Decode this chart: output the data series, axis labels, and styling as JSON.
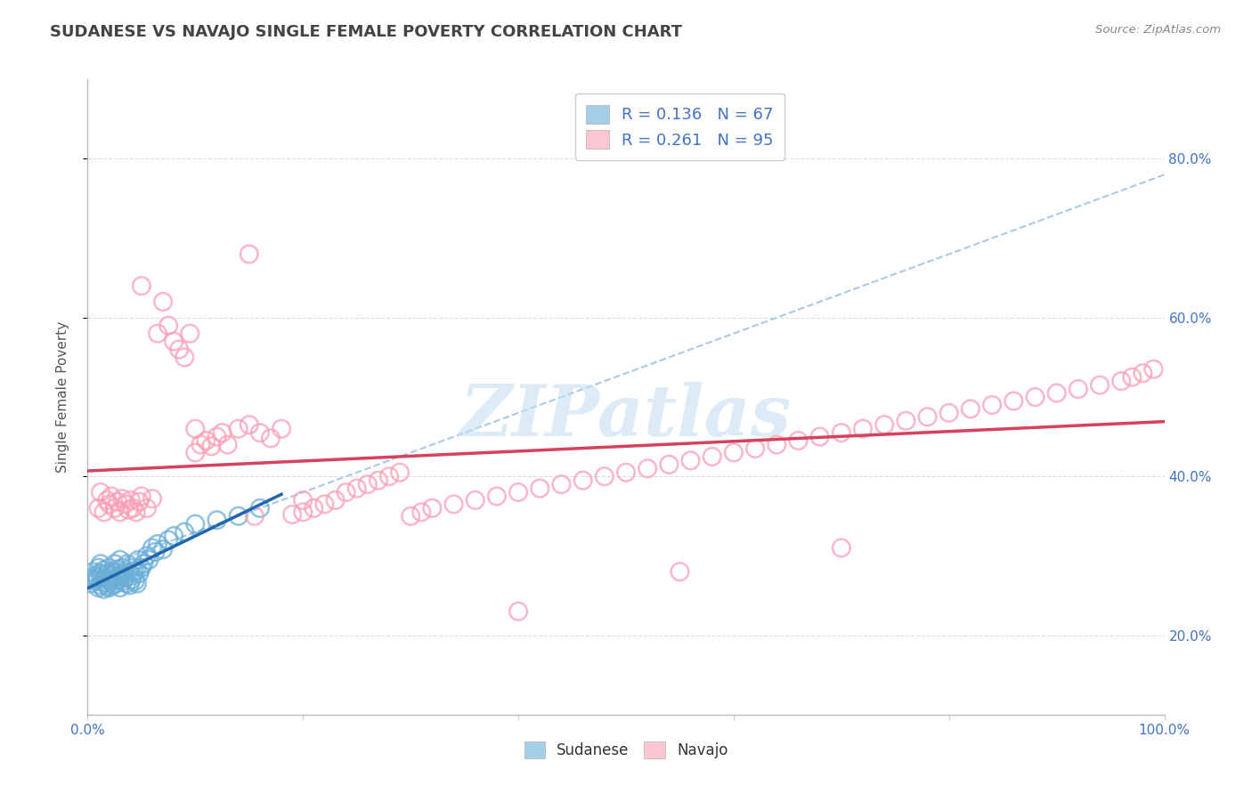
{
  "title": "SUDANESE VS NAVAJO SINGLE FEMALE POVERTY CORRELATION CHART",
  "source_text": "Source: ZipAtlas.com",
  "ylabel": "Single Female Poverty",
  "xlim": [
    0.0,
    1.0
  ],
  "ylim": [
    0.1,
    0.9
  ],
  "y_tick_vals": [
    0.2,
    0.4,
    0.6,
    0.8
  ],
  "y_tick_labels": [
    "20.0%",
    "40.0%",
    "60.0%",
    "80.0%"
  ],
  "x_tick_vals": [
    0.0,
    0.2,
    0.4,
    0.6,
    0.8,
    1.0
  ],
  "x_edge_labels": [
    "0.0%",
    "100.0%"
  ],
  "sudanese_color": "#6baed6",
  "sudanese_edge_color": "#4393c3",
  "navajo_color": "#fa9fb5",
  "navajo_edge_color": "#f768a1",
  "sudanese_R": 0.136,
  "sudanese_N": 67,
  "navajo_R": 0.261,
  "navajo_N": 95,
  "legend_label_1": "Sudanese",
  "legend_label_2": "Navajo",
  "watermark": "ZIPatlas",
  "blue_line_color": "#2166ac",
  "pink_line_color": "#d6415e",
  "dashed_line_color": "#aac8e8",
  "grid_color": "#dddddd",
  "axis_label_color": "#4472c4",
  "title_color": "#444444",
  "source_color": "#888888",
  "sud_seed": 42,
  "nav_seed": 7,
  "sud_x": [
    0.003,
    0.005,
    0.006,
    0.007,
    0.008,
    0.009,
    0.01,
    0.01,
    0.011,
    0.012,
    0.012,
    0.013,
    0.014,
    0.015,
    0.015,
    0.016,
    0.017,
    0.018,
    0.018,
    0.019,
    0.02,
    0.02,
    0.021,
    0.022,
    0.023,
    0.024,
    0.025,
    0.025,
    0.026,
    0.027,
    0.028,
    0.029,
    0.03,
    0.03,
    0.031,
    0.032,
    0.033,
    0.034,
    0.035,
    0.036,
    0.037,
    0.038,
    0.039,
    0.04,
    0.041,
    0.042,
    0.043,
    0.044,
    0.045,
    0.046,
    0.047,
    0.048,
    0.05,
    0.052,
    0.055,
    0.057,
    0.06,
    0.063,
    0.065,
    0.07,
    0.075,
    0.08,
    0.09,
    0.1,
    0.12,
    0.14,
    0.16
  ],
  "sud_y": [
    0.265,
    0.28,
    0.27,
    0.275,
    0.268,
    0.272,
    0.26,
    0.285,
    0.278,
    0.263,
    0.29,
    0.275,
    0.268,
    0.282,
    0.258,
    0.272,
    0.265,
    0.278,
    0.262,
    0.27,
    0.285,
    0.26,
    0.275,
    0.268,
    0.28,
    0.263,
    0.272,
    0.29,
    0.265,
    0.278,
    0.283,
    0.27,
    0.295,
    0.26,
    0.275,
    0.285,
    0.268,
    0.28,
    0.272,
    0.265,
    0.29,
    0.278,
    0.263,
    0.285,
    0.27,
    0.275,
    0.28,
    0.268,
    0.282,
    0.265,
    0.295,
    0.278,
    0.285,
    0.29,
    0.3,
    0.295,
    0.31,
    0.305,
    0.315,
    0.308,
    0.32,
    0.325,
    0.33,
    0.34,
    0.345,
    0.35,
    0.36
  ],
  "nav_x": [
    0.01,
    0.012,
    0.015,
    0.018,
    0.02,
    0.022,
    0.025,
    0.028,
    0.03,
    0.032,
    0.035,
    0.038,
    0.04,
    0.042,
    0.045,
    0.048,
    0.05,
    0.055,
    0.06,
    0.065,
    0.07,
    0.075,
    0.08,
    0.085,
    0.09,
    0.095,
    0.1,
    0.105,
    0.11,
    0.115,
    0.12,
    0.125,
    0.13,
    0.14,
    0.15,
    0.155,
    0.16,
    0.17,
    0.18,
    0.19,
    0.2,
    0.21,
    0.22,
    0.23,
    0.24,
    0.25,
    0.26,
    0.27,
    0.28,
    0.29,
    0.3,
    0.31,
    0.32,
    0.34,
    0.36,
    0.38,
    0.4,
    0.42,
    0.44,
    0.46,
    0.48,
    0.5,
    0.52,
    0.54,
    0.56,
    0.58,
    0.6,
    0.62,
    0.64,
    0.66,
    0.68,
    0.7,
    0.72,
    0.74,
    0.76,
    0.78,
    0.8,
    0.82,
    0.84,
    0.86,
    0.88,
    0.9,
    0.92,
    0.94,
    0.96,
    0.97,
    0.98,
    0.99,
    0.1,
    0.2,
    0.05,
    0.15,
    0.4,
    0.55,
    0.7
  ],
  "nav_y": [
    0.36,
    0.38,
    0.355,
    0.37,
    0.365,
    0.375,
    0.36,
    0.368,
    0.355,
    0.372,
    0.365,
    0.358,
    0.37,
    0.36,
    0.355,
    0.368,
    0.375,
    0.36,
    0.372,
    0.58,
    0.62,
    0.59,
    0.57,
    0.56,
    0.55,
    0.58,
    0.43,
    0.44,
    0.445,
    0.438,
    0.45,
    0.455,
    0.44,
    0.46,
    0.465,
    0.35,
    0.455,
    0.448,
    0.46,
    0.352,
    0.355,
    0.36,
    0.365,
    0.37,
    0.38,
    0.385,
    0.39,
    0.395,
    0.4,
    0.405,
    0.35,
    0.355,
    0.36,
    0.365,
    0.37,
    0.375,
    0.38,
    0.385,
    0.39,
    0.395,
    0.4,
    0.405,
    0.41,
    0.415,
    0.42,
    0.425,
    0.43,
    0.435,
    0.44,
    0.445,
    0.45,
    0.455,
    0.46,
    0.465,
    0.47,
    0.475,
    0.48,
    0.485,
    0.49,
    0.495,
    0.5,
    0.505,
    0.51,
    0.515,
    0.52,
    0.525,
    0.53,
    0.535,
    0.46,
    0.37,
    0.64,
    0.68,
    0.23,
    0.28,
    0.31
  ]
}
